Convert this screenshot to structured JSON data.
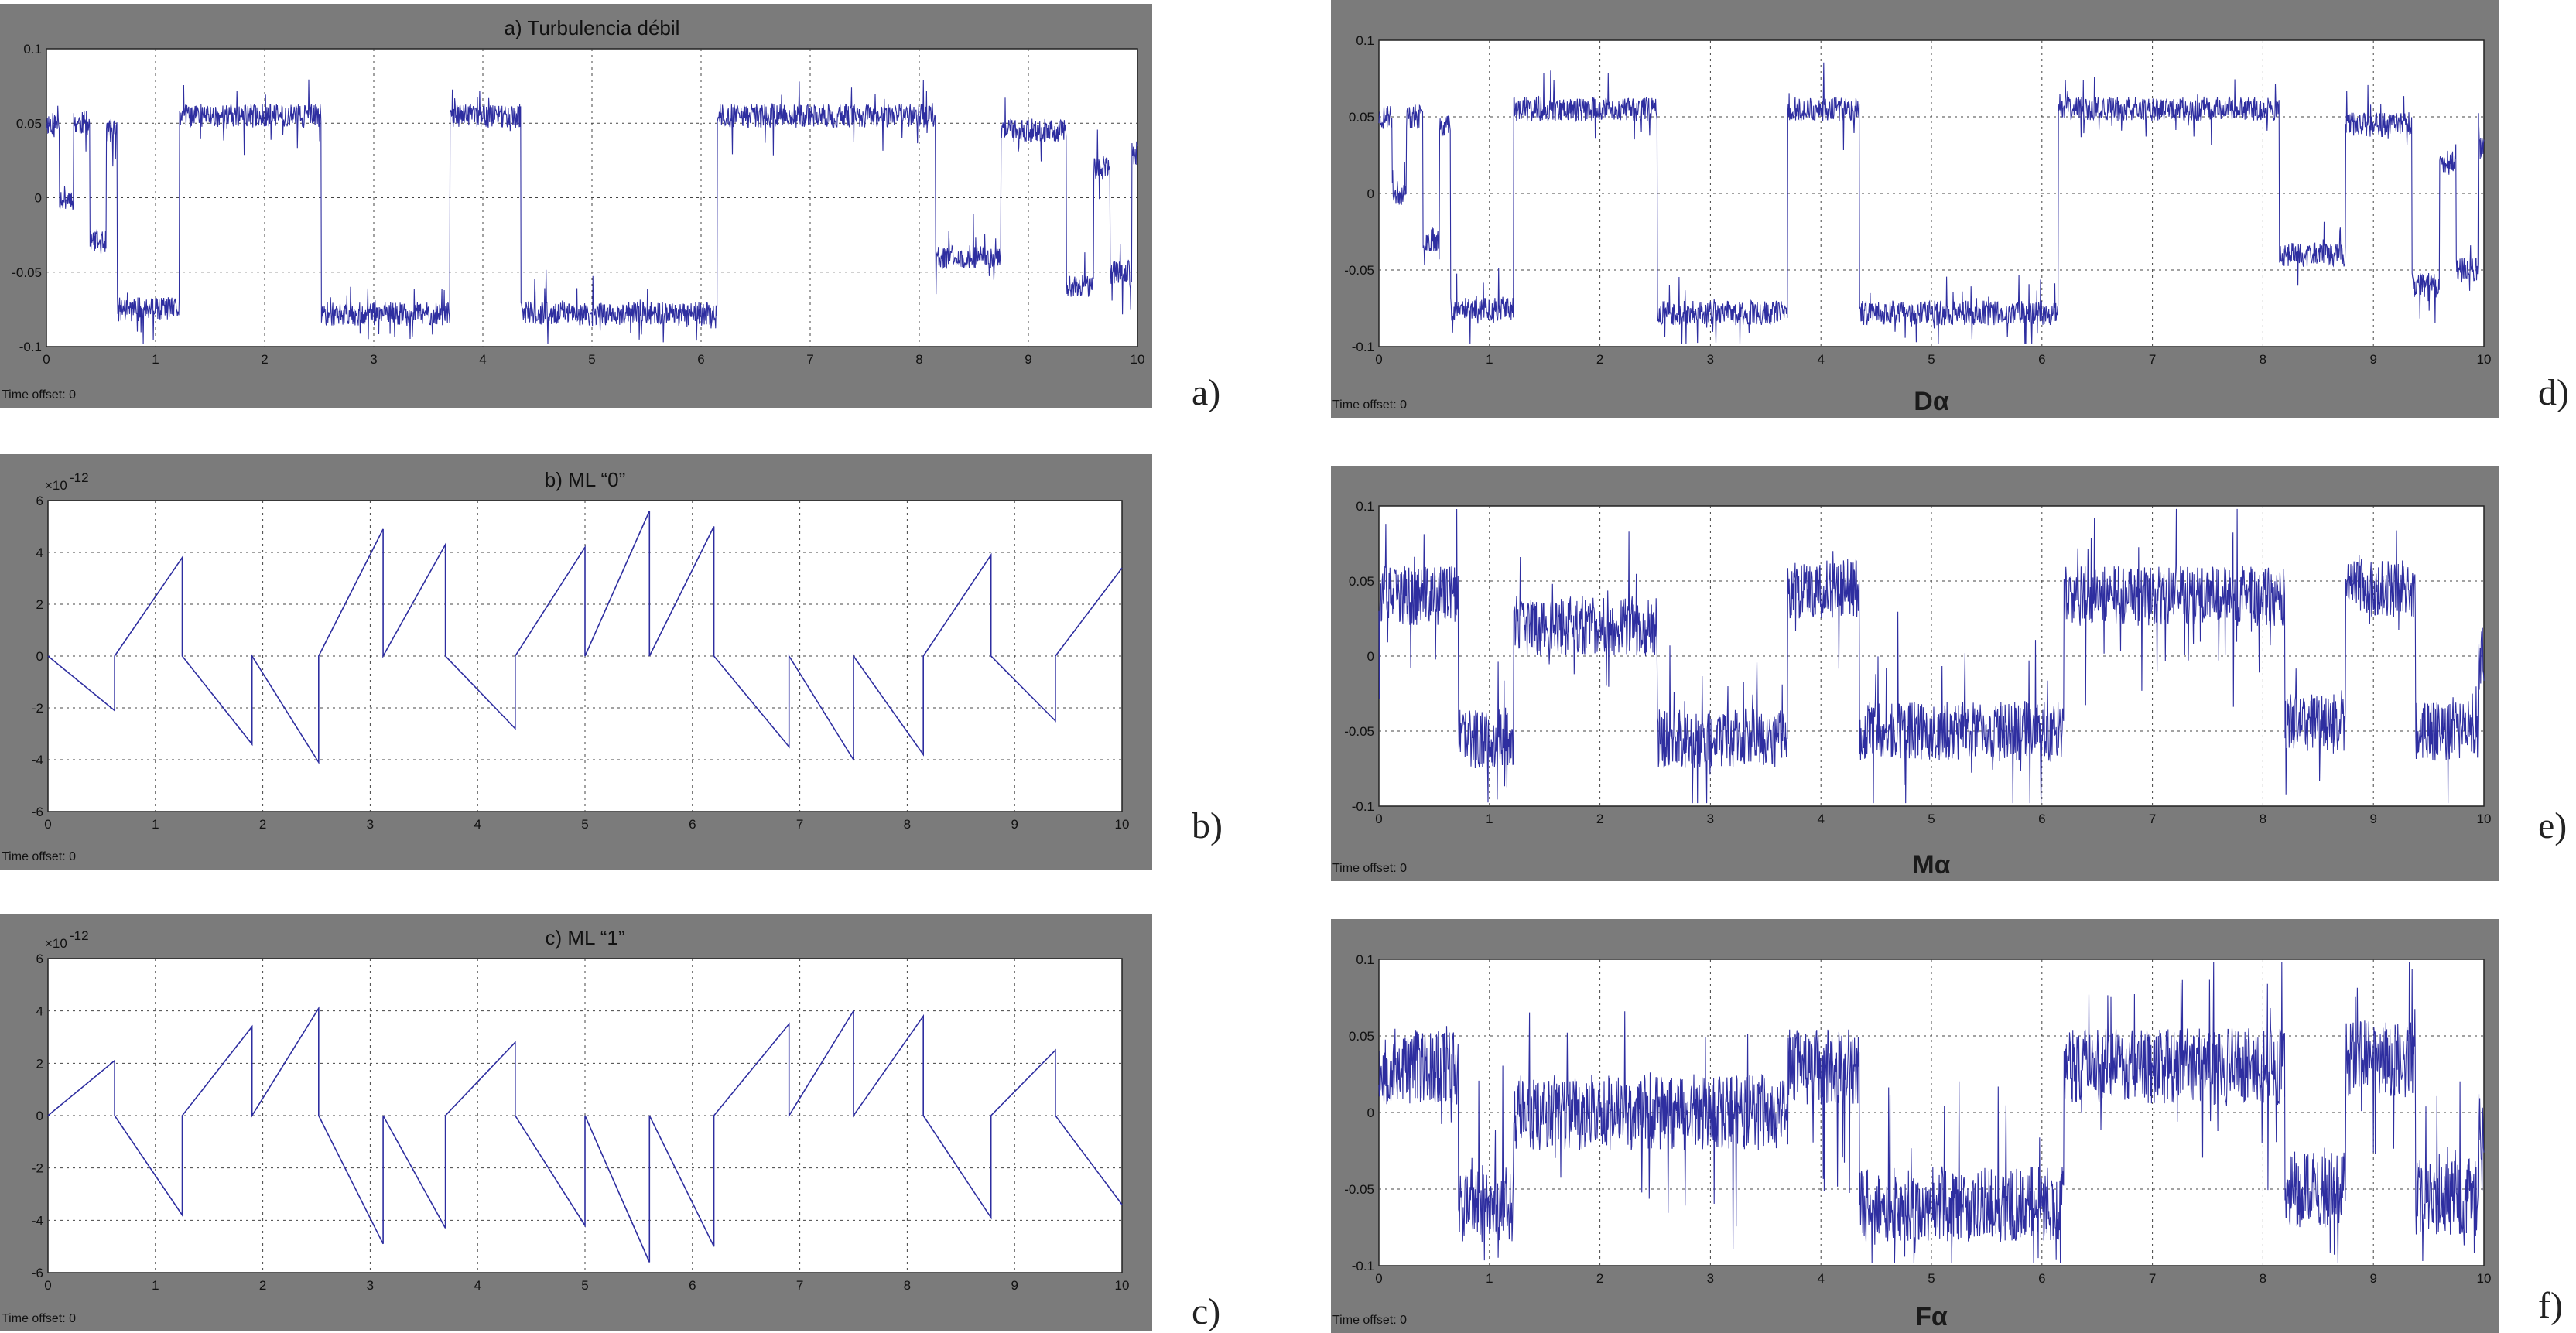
{
  "figure": {
    "line_color": "#2e2ea0",
    "frame_color": "#7b7b7b"
  },
  "chart_data": [
    {
      "id": "a",
      "type": "line",
      "title": "a) Turbulencia débil",
      "side_label": "a)",
      "bottom_label": "",
      "time_offset": "Time offset:  0",
      "exponent": "",
      "xlim": [
        0,
        10
      ],
      "ylim": [
        -0.1,
        0.1
      ],
      "xticks": [
        0,
        1,
        2,
        3,
        4,
        5,
        6,
        7,
        8,
        9,
        10
      ],
      "yticks": [
        -0.1,
        -0.05,
        0,
        0.05,
        0.1
      ],
      "ytick_labels": [
        "-0.1",
        "-0.05",
        "0",
        "0.05",
        "0.1"
      ],
      "grid": true,
      "kind": "pulse",
      "noise": 0.008,
      "seed": 11,
      "segments": [
        {
          "t": 0.0,
          "y": 0.05
        },
        {
          "t": 0.12,
          "y": 0.0
        },
        {
          "t": 0.25,
          "y": 0.05
        },
        {
          "t": 0.4,
          "y": -0.03
        },
        {
          "t": 0.55,
          "y": 0.045
        },
        {
          "t": 0.65,
          "y": -0.075
        },
        {
          "t": 1.22,
          "y": 0.055
        },
        {
          "t": 2.52,
          "y": -0.078
        },
        {
          "t": 3.7,
          "y": 0.055
        },
        {
          "t": 4.35,
          "y": -0.078
        },
        {
          "t": 6.15,
          "y": 0.055
        },
        {
          "t": 8.15,
          "y": -0.04
        },
        {
          "t": 8.75,
          "y": 0.045
        },
        {
          "t": 9.35,
          "y": -0.06
        },
        {
          "t": 9.6,
          "y": 0.02
        },
        {
          "t": 9.75,
          "y": -0.05
        },
        {
          "t": 9.95,
          "y": 0.03
        }
      ]
    },
    {
      "id": "b",
      "type": "line",
      "title": "b) ML “0”",
      "side_label": "b)",
      "bottom_label": "",
      "time_offset": "Time offset:  0",
      "exponent": "-12",
      "xlim": [
        0,
        10
      ],
      "ylim": [
        -6,
        6
      ],
      "xticks": [
        0,
        1,
        2,
        3,
        4,
        5,
        6,
        7,
        8,
        9,
        10
      ],
      "yticks": [
        -6,
        -4,
        -2,
        0,
        2,
        4,
        6
      ],
      "ytick_labels": [
        "-6",
        "-4",
        "-2",
        "0",
        "2",
        "4",
        "6"
      ],
      "grid": true,
      "kind": "points",
      "noise": 0,
      "points": [
        [
          0,
          0
        ],
        [
          0.62,
          -2.1
        ],
        [
          0.62,
          0
        ],
        [
          1.25,
          3.8
        ],
        [
          1.25,
          0
        ],
        [
          1.9,
          -3.4
        ],
        [
          1.9,
          0
        ],
        [
          2.52,
          -4.1
        ],
        [
          2.52,
          0
        ],
        [
          3.12,
          4.9
        ],
        [
          3.12,
          0
        ],
        [
          3.7,
          4.3
        ],
        [
          3.7,
          0
        ],
        [
          4.35,
          -2.8
        ],
        [
          4.35,
          0
        ],
        [
          5.0,
          4.2
        ],
        [
          5.0,
          0
        ],
        [
          5.6,
          5.6
        ],
        [
          5.6,
          0
        ],
        [
          6.2,
          5.0
        ],
        [
          6.2,
          0
        ],
        [
          6.9,
          -3.5
        ],
        [
          6.9,
          0
        ],
        [
          7.5,
          -4.0
        ],
        [
          7.5,
          0
        ],
        [
          8.15,
          -3.8
        ],
        [
          8.15,
          0
        ],
        [
          8.78,
          3.9
        ],
        [
          8.78,
          0
        ],
        [
          9.38,
          -2.5
        ],
        [
          9.38,
          0
        ],
        [
          10,
          3.4
        ]
      ]
    },
    {
      "id": "c",
      "type": "line",
      "title": "c) ML “1”",
      "side_label": "c)",
      "bottom_label": "",
      "time_offset": "Time offset:  0",
      "exponent": "-12",
      "xlim": [
        0,
        10
      ],
      "ylim": [
        -6,
        6
      ],
      "xticks": [
        0,
        1,
        2,
        3,
        4,
        5,
        6,
        7,
        8,
        9,
        10
      ],
      "yticks": [
        -6,
        -4,
        -2,
        0,
        2,
        4,
        6
      ],
      "ytick_labels": [
        "-6",
        "-4",
        "-2",
        "0",
        "2",
        "4",
        "6"
      ],
      "grid": true,
      "kind": "points",
      "noise": 0,
      "points": [
        [
          0,
          0
        ],
        [
          0.62,
          2.1
        ],
        [
          0.62,
          0
        ],
        [
          1.25,
          -3.8
        ],
        [
          1.25,
          0
        ],
        [
          1.9,
          3.4
        ],
        [
          1.9,
          0
        ],
        [
          2.52,
          4.1
        ],
        [
          2.52,
          0
        ],
        [
          3.12,
          -4.9
        ],
        [
          3.12,
          0
        ],
        [
          3.7,
          -4.3
        ],
        [
          3.7,
          0
        ],
        [
          4.35,
          2.8
        ],
        [
          4.35,
          0
        ],
        [
          5.0,
          -4.2
        ],
        [
          5.0,
          0
        ],
        [
          5.6,
          -5.6
        ],
        [
          5.6,
          0
        ],
        [
          6.2,
          -5.0
        ],
        [
          6.2,
          0
        ],
        [
          6.9,
          3.5
        ],
        [
          6.9,
          0
        ],
        [
          7.5,
          4.0
        ],
        [
          7.5,
          0
        ],
        [
          8.15,
          3.8
        ],
        [
          8.15,
          0
        ],
        [
          8.78,
          -3.9
        ],
        [
          8.78,
          0
        ],
        [
          9.38,
          2.5
        ],
        [
          9.38,
          0
        ],
        [
          10,
          -3.4
        ]
      ]
    },
    {
      "id": "d",
      "type": "line",
      "title": "",
      "side_label": "d)",
      "bottom_label": "Dα",
      "time_offset": "Time offset:  0",
      "exponent": "",
      "xlim": [
        0,
        10
      ],
      "ylim": [
        -0.1,
        0.1
      ],
      "xticks": [
        0,
        1,
        2,
        3,
        4,
        5,
        6,
        7,
        8,
        9,
        10
      ],
      "yticks": [
        -0.1,
        -0.05,
        0,
        0.05,
        0.1
      ],
      "ytick_labels": [
        "-0.1",
        "-0.05",
        "0",
        "0.05",
        "0.1"
      ],
      "grid": true,
      "kind": "pulse",
      "noise": 0.008,
      "seed": 23,
      "segments": [
        {
          "t": 0.0,
          "y": 0.05
        },
        {
          "t": 0.12,
          "y": 0.0
        },
        {
          "t": 0.25,
          "y": 0.05
        },
        {
          "t": 0.4,
          "y": -0.03
        },
        {
          "t": 0.55,
          "y": 0.045
        },
        {
          "t": 0.65,
          "y": -0.075
        },
        {
          "t": 1.22,
          "y": 0.055
        },
        {
          "t": 2.52,
          "y": -0.078
        },
        {
          "t": 3.7,
          "y": 0.055
        },
        {
          "t": 4.35,
          "y": -0.078
        },
        {
          "t": 6.15,
          "y": 0.055
        },
        {
          "t": 8.15,
          "y": -0.04
        },
        {
          "t": 8.75,
          "y": 0.045
        },
        {
          "t": 9.35,
          "y": -0.06
        },
        {
          "t": 9.6,
          "y": 0.02
        },
        {
          "t": 9.75,
          "y": -0.05
        },
        {
          "t": 9.95,
          "y": 0.03
        }
      ]
    },
    {
      "id": "e",
      "type": "line",
      "title": "",
      "side_label": "e)",
      "bottom_label": "Mα",
      "time_offset": "Time offset:  0",
      "exponent": "",
      "xlim": [
        0,
        10
      ],
      "ylim": [
        -0.1,
        0.1
      ],
      "xticks": [
        0,
        1,
        2,
        3,
        4,
        5,
        6,
        7,
        8,
        9,
        10
      ],
      "yticks": [
        -0.1,
        -0.05,
        0,
        0.05,
        0.1
      ],
      "ytick_labels": [
        "-0.1",
        "-0.05",
        "0",
        "0.05",
        "0.1"
      ],
      "grid": true,
      "kind": "pulse",
      "noise": 0.02,
      "seed": 37,
      "segments": [
        {
          "t": 0.0,
          "y": 0.04
        },
        {
          "t": 0.72,
          "y": -0.055
        },
        {
          "t": 1.22,
          "y": 0.02
        },
        {
          "t": 2.52,
          "y": -0.055
        },
        {
          "t": 3.7,
          "y": 0.045
        },
        {
          "t": 4.35,
          "y": -0.05
        },
        {
          "t": 6.2,
          "y": 0.04
        },
        {
          "t": 8.2,
          "y": -0.045
        },
        {
          "t": 8.75,
          "y": 0.045
        },
        {
          "t": 9.38,
          "y": -0.05
        },
        {
          "t": 9.95,
          "y": 0.0
        }
      ]
    },
    {
      "id": "f",
      "type": "line",
      "title": "",
      "side_label": "f)",
      "bottom_label": "Fα",
      "time_offset": "Time offset:  0",
      "exponent": "",
      "xlim": [
        0,
        10
      ],
      "ylim": [
        -0.1,
        0.1
      ],
      "xticks": [
        0,
        1,
        2,
        3,
        4,
        5,
        6,
        7,
        8,
        9,
        10
      ],
      "yticks": [
        -0.1,
        -0.05,
        0,
        0.05,
        0.1
      ],
      "ytick_labels": [
        "-0.1",
        "-0.05",
        "0",
        "0.05",
        "0.1"
      ],
      "grid": true,
      "kind": "pulse",
      "noise": 0.025,
      "seed": 53,
      "segments": [
        {
          "t": 0.0,
          "y": 0.03
        },
        {
          "t": 0.72,
          "y": -0.06
        },
        {
          "t": 1.22,
          "y": 0.0
        },
        {
          "t": 3.7,
          "y": 0.03
        },
        {
          "t": 4.35,
          "y": -0.06
        },
        {
          "t": 6.2,
          "y": 0.03
        },
        {
          "t": 8.2,
          "y": -0.05
        },
        {
          "t": 8.75,
          "y": 0.035
        },
        {
          "t": 9.38,
          "y": -0.055
        },
        {
          "t": 9.95,
          "y": -0.01
        }
      ]
    }
  ]
}
